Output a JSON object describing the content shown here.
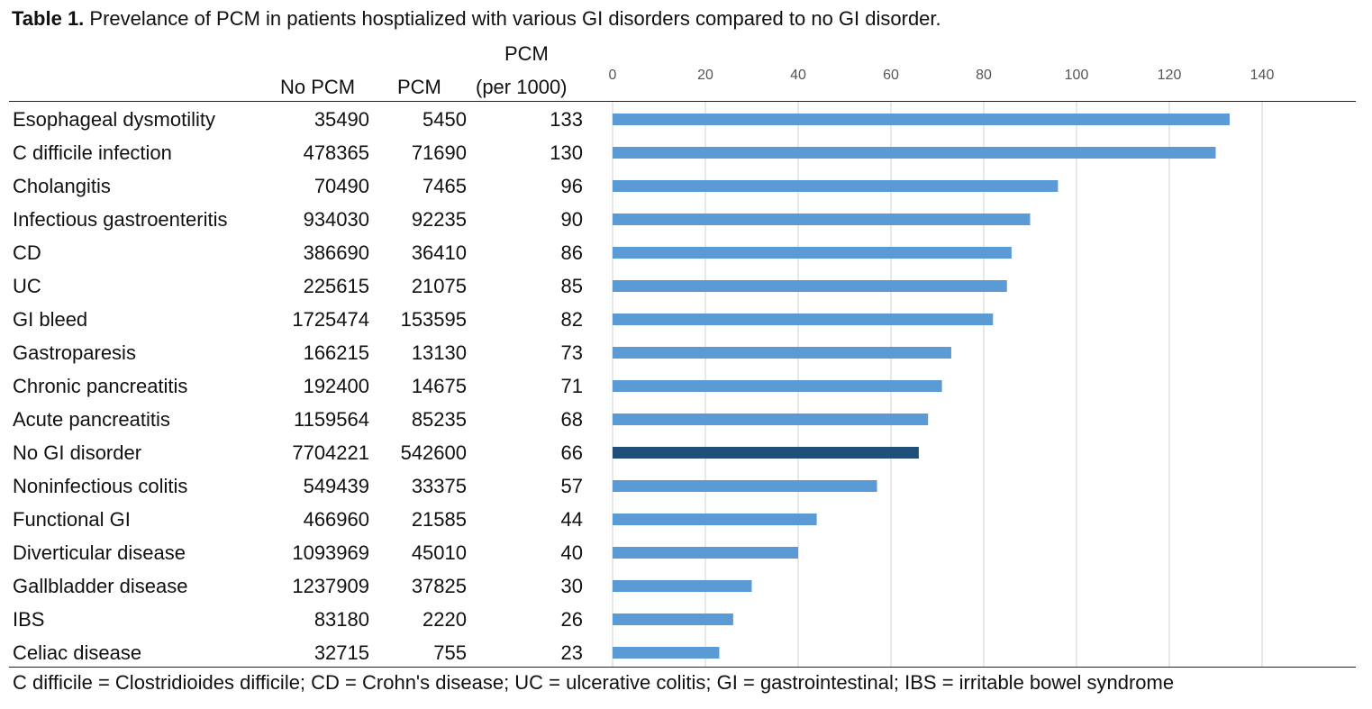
{
  "caption": {
    "label": "Table 1.",
    "text": " Prevelance of PCM in patients hosptialized with various GI disorders compared to no GI disorder."
  },
  "headers": {
    "no_pcm": "No PCM",
    "pcm": "PCM",
    "rate_line1": "PCM",
    "rate_line2": "(per 1000)"
  },
  "rows": [
    {
      "name": "Esophageal dysmotility",
      "no_pcm": "35490",
      "pcm": "5450",
      "rate": "133"
    },
    {
      "name": "C difficile infection",
      "no_pcm": "478365",
      "pcm": "71690",
      "rate": "130"
    },
    {
      "name": "Cholangitis",
      "no_pcm": "70490",
      "pcm": "7465",
      "rate": "96"
    },
    {
      "name": "Infectious gastroenteritis",
      "no_pcm": "934030",
      "pcm": "92235",
      "rate": "90"
    },
    {
      "name": "CD",
      "no_pcm": "386690",
      "pcm": "36410",
      "rate": "86"
    },
    {
      "name": "UC",
      "no_pcm": "225615",
      "pcm": "21075",
      "rate": "85"
    },
    {
      "name": "GI bleed",
      "no_pcm": "1725474",
      "pcm": "153595",
      "rate": "82"
    },
    {
      "name": "Gastroparesis",
      "no_pcm": "166215",
      "pcm": "13130",
      "rate": "73"
    },
    {
      "name": "Chronic pancreatitis",
      "no_pcm": "192400",
      "pcm": "14675",
      "rate": "71"
    },
    {
      "name": "Acute pancreatitis",
      "no_pcm": "1159564",
      "pcm": "85235",
      "rate": "68"
    },
    {
      "name": "No GI disorder",
      "no_pcm": "7704221",
      "pcm": "542600",
      "rate": "66"
    },
    {
      "name": "Noninfectious colitis",
      "no_pcm": "549439",
      "pcm": "33375",
      "rate": "57"
    },
    {
      "name": "Functional GI",
      "no_pcm": "466960",
      "pcm": "21585",
      "rate": "44"
    },
    {
      "name": "Diverticular disease",
      "no_pcm": "1093969",
      "pcm": "45010",
      "rate": "40"
    },
    {
      "name": "Gallbladder disease",
      "no_pcm": "1237909",
      "pcm": "37825",
      "rate": "30"
    },
    {
      "name": "IBS",
      "no_pcm": "83180",
      "pcm": "2220",
      "rate": "26"
    },
    {
      "name": "Celiac disease",
      "no_pcm": "32715",
      "pcm": "755",
      "rate": "23"
    }
  ],
  "footnote": "C difficile = Clostridioides difficile; CD = Crohn's disease; UC = ulcerative colitis; GI = gastrointestinal; IBS = irritable bowel syndrome",
  "chart_data": {
    "type": "bar",
    "orientation": "horizontal",
    "categories": [
      "Esophageal dysmotility",
      "C difficile infection",
      "Cholangitis",
      "Infectious gastroenteritis",
      "CD",
      "UC",
      "GI bleed",
      "Gastroparesis",
      "Chronic pancreatitis",
      "Acute pancreatitis",
      "No GI disorder",
      "Noninfectious colitis",
      "Functional GI",
      "Diverticular disease",
      "Gallbladder disease",
      "IBS",
      "Celiac disease"
    ],
    "values": [
      133,
      130,
      96,
      90,
      86,
      85,
      82,
      73,
      71,
      68,
      66,
      57,
      44,
      40,
      30,
      26,
      23
    ],
    "xlim": [
      0,
      140
    ],
    "ticks": [
      "0",
      "20",
      "40",
      "60",
      "80",
      "100",
      "120",
      "140"
    ],
    "tick_values": [
      0,
      20,
      40,
      60,
      80,
      100,
      120,
      140
    ],
    "grid": true,
    "colors": {
      "default": "#5b9bd5",
      "highlight": "#1f4e79",
      "grid": "#d0d0d0",
      "axis_text": "#555555"
    },
    "highlight_category": "No GI disorder"
  }
}
